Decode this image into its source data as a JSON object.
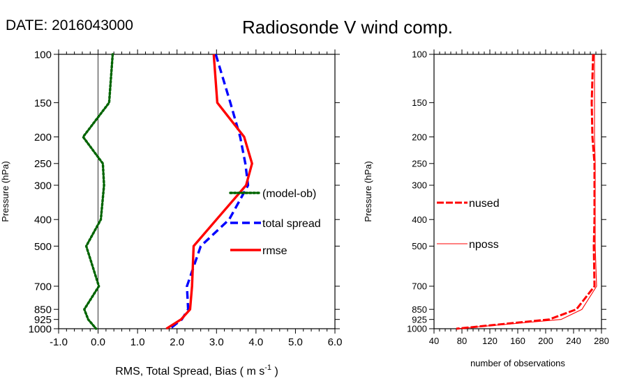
{
  "header": {
    "date_label": "DATE: 2016043000",
    "title": "Radiosonde V wind comp."
  },
  "chart_data": [
    {
      "type": "line",
      "orientation": "vertical-profile",
      "xlabel": "RMS, Total Spread, Bias ( m s",
      "xlabel_sup": "-1",
      "xlabel_close": " )",
      "ylabel": "Pressure (hPa)",
      "xlim": [
        -1.0,
        6.0
      ],
      "xticks": [
        -1.0,
        0.0,
        1.0,
        2.0,
        3.0,
        4.0,
        5.0,
        6.0
      ],
      "xtick_labels": [
        "-1.0",
        "0.0",
        "1.0",
        "2.0",
        "3.0",
        "4.0",
        "5.0",
        "6.0"
      ],
      "ylim": [
        1000,
        100
      ],
      "yscale": "log",
      "yticks": [
        100,
        150,
        200,
        250,
        300,
        400,
        500,
        700,
        850,
        925,
        1000
      ],
      "ytick_labels": [
        "100",
        "150",
        "200",
        "250",
        "300",
        "400",
        "500",
        "700",
        "850",
        "925",
        "1000"
      ],
      "zero_line": 0.0,
      "legend": [
        {
          "label": "(model-ob)",
          "color": "#006400",
          "style": "dotted"
        },
        {
          "label": "total spread",
          "color": "#0000ff",
          "style": "dashed"
        },
        {
          "label": "rmse",
          "color": "#ff0000",
          "style": "solid"
        }
      ],
      "series": [
        {
          "name": "(model-ob)",
          "color": "#006400",
          "style": "dotted",
          "points": [
            [
              0.37,
              100
            ],
            [
              0.28,
              150
            ],
            [
              -0.38,
              200
            ],
            [
              0.12,
              250
            ],
            [
              0.15,
              300
            ],
            [
              0.07,
              400
            ],
            [
              -0.3,
              500
            ],
            [
              0.02,
              700
            ],
            [
              -0.35,
              850
            ],
            [
              -0.25,
              925
            ],
            [
              -0.05,
              1000
            ]
          ]
        },
        {
          "name": "total spread",
          "color": "#0000ff",
          "style": "dashed",
          "points": [
            [
              2.98,
              100
            ],
            [
              3.35,
              150
            ],
            [
              3.6,
              200
            ],
            [
              3.73,
              250
            ],
            [
              3.8,
              300
            ],
            [
              3.32,
              400
            ],
            [
              2.6,
              500
            ],
            [
              2.25,
              700
            ],
            [
              2.28,
              850
            ],
            [
              2.12,
              925
            ],
            [
              1.82,
              1000
            ]
          ]
        },
        {
          "name": "rmse",
          "color": "#ff0000",
          "style": "solid",
          "points": [
            [
              2.93,
              100
            ],
            [
              3.02,
              150
            ],
            [
              3.7,
              200
            ],
            [
              3.9,
              250
            ],
            [
              3.75,
              300
            ],
            [
              3.0,
              400
            ],
            [
              2.42,
              500
            ],
            [
              2.38,
              700
            ],
            [
              2.33,
              850
            ],
            [
              2.1,
              925
            ],
            [
              1.73,
              1000
            ]
          ]
        }
      ]
    },
    {
      "type": "line",
      "orientation": "vertical-profile",
      "xlabel": "number of observations",
      "ylabel": "Pressure (hPa)",
      "xlim": [
        40,
        280
      ],
      "xticks": [
        40,
        80,
        120,
        160,
        200,
        240,
        280
      ],
      "xtick_labels": [
        "40",
        "80",
        "120",
        "160",
        "200",
        "240",
        "280"
      ],
      "ylim": [
        1000,
        100
      ],
      "yscale": "log",
      "yticks": [
        100,
        150,
        200,
        250,
        300,
        400,
        500,
        700,
        850,
        925,
        1000
      ],
      "ytick_labels": [
        "100",
        "150",
        "200",
        "250",
        "300",
        "400",
        "500",
        "700",
        "850",
        "925",
        "1000"
      ],
      "legend": [
        {
          "label": "nused",
          "color": "#ff0000",
          "style": "dashed-thick"
        },
        {
          "label": "nposs",
          "color": "#ff0000",
          "style": "solid-thin"
        }
      ],
      "series": [
        {
          "name": "nused",
          "color": "#ff0000",
          "style": "dashed-thick",
          "points": [
            [
              268,
              100
            ],
            [
              266,
              150
            ],
            [
              267,
              200
            ],
            [
              270,
              250
            ],
            [
              270,
              300
            ],
            [
              270,
              400
            ],
            [
              269,
              500
            ],
            [
              270,
              700
            ],
            [
              244,
              850
            ],
            [
              205,
              925
            ],
            [
              72,
              1000
            ]
          ]
        },
        {
          "name": "nposs",
          "color": "#ff0000",
          "style": "solid-thin",
          "points": [
            [
              270,
              100
            ],
            [
              270,
              150
            ],
            [
              270,
              200
            ],
            [
              271,
              250
            ],
            [
              271,
              300
            ],
            [
              271,
              400
            ],
            [
              271,
              500
            ],
            [
              273,
              700
            ],
            [
              252,
              850
            ],
            [
              222,
              925
            ],
            [
              72,
              1000
            ]
          ]
        }
      ]
    }
  ]
}
